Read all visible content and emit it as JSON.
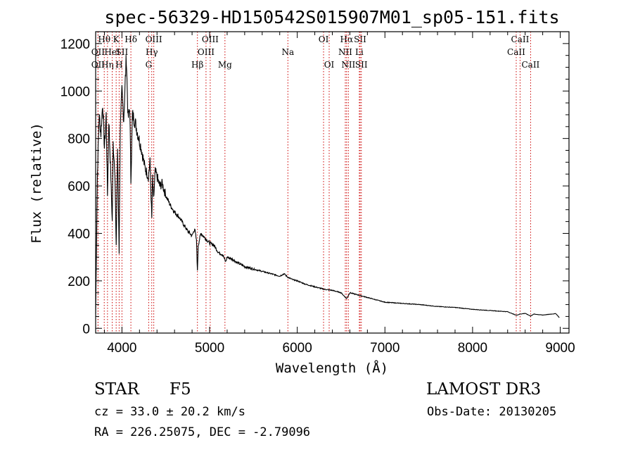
{
  "chart_data": {
    "type": "line",
    "title": "spec-56329-HD150542S015907M01_sp05-151.fits",
    "xlabel": "Wavelength (Å)",
    "ylabel": "Flux (relative)",
    "xlim": [
      3700,
      9100
    ],
    "ylim": [
      -20,
      1250
    ],
    "xticks": [
      4000,
      5000,
      6000,
      7000,
      8000,
      9000
    ],
    "yticks": [
      0,
      200,
      400,
      600,
      800,
      1000,
      1200
    ],
    "grid": false,
    "series": [
      {
        "name": "spectrum",
        "x": [
          3700,
          3720,
          3740,
          3760,
          3780,
          3800,
          3820,
          3835,
          3850,
          3870,
          3889,
          3900,
          3920,
          3934,
          3950,
          3968,
          3980,
          4000,
          4020,
          4050,
          4070,
          4090,
          4102,
          4120,
          4150,
          4180,
          4220,
          4260,
          4300,
          4320,
          4340,
          4350,
          4360,
          4380,
          4400,
          4430,
          4460,
          4500,
          4550,
          4600,
          4650,
          4700,
          4750,
          4800,
          4830,
          4850,
          4861,
          4870,
          4900,
          4950,
          5000,
          5050,
          5100,
          5150,
          5183,
          5200,
          5270,
          5300,
          5400,
          5500,
          5600,
          5700,
          5800,
          5850,
          5893,
          5950,
          6000,
          6100,
          6200,
          6300,
          6400,
          6500,
          6563,
          6600,
          6700,
          6800,
          6900,
          7000,
          7200,
          7400,
          7600,
          7800,
          8000,
          8200,
          8400,
          8498,
          8542,
          8600,
          8662,
          8700,
          8800,
          8950,
          8990
        ],
        "values": [
          60,
          650,
          900,
          820,
          950,
          760,
          900,
          560,
          880,
          680,
          450,
          780,
          660,
          340,
          760,
          320,
          830,
          1000,
          880,
          1150,
          880,
          930,
          620,
          900,
          870,
          820,
          760,
          680,
          640,
          700,
          460,
          640,
          540,
          660,
          640,
          600,
          610,
          560,
          520,
          490,
          470,
          440,
          410,
          390,
          420,
          370,
          240,
          350,
          400,
          380,
          360,
          350,
          320,
          310,
          280,
          300,
          290,
          280,
          260,
          250,
          240,
          230,
          220,
          230,
          215,
          205,
          200,
          185,
          175,
          165,
          160,
          150,
          125,
          150,
          140,
          130,
          120,
          110,
          105,
          100,
          92,
          88,
          80,
          75,
          70,
          55,
          60,
          63,
          52,
          60,
          56,
          62,
          45
        ]
      }
    ],
    "spectral_lines": [
      {
        "label": "Hθ",
        "x": 3798,
        "row": 0
      },
      {
        "label": "OII",
        "x": 3727,
        "row": 1
      },
      {
        "label": "OII",
        "x": 3727,
        "row": 2
      },
      {
        "label": "Hη",
        "x": 3835,
        "row": 2
      },
      {
        "label": "HeI",
        "x": 3889,
        "row": 1
      },
      {
        "label": "K",
        "x": 3934,
        "row": 0
      },
      {
        "label": "SII",
        "x": 4000,
        "row": 1
      },
      {
        "label": "H",
        "x": 3968,
        "row": 2
      },
      {
        "label": "Hδ",
        "x": 4102,
        "row": 0
      },
      {
        "label": "OIII",
        "x": 4363,
        "row": 0
      },
      {
        "label": "Hγ",
        "x": 4340,
        "row": 1
      },
      {
        "label": "G",
        "x": 4305,
        "row": 2
      },
      {
        "label": "OIII",
        "x": 5007,
        "row": 0
      },
      {
        "label": "OIII",
        "x": 4959,
        "row": 1
      },
      {
        "label": "Hβ",
        "x": 4861,
        "row": 2
      },
      {
        "label": "Mg",
        "x": 5175,
        "row": 2
      },
      {
        "label": "Na",
        "x": 5893,
        "row": 1
      },
      {
        "label": "OI",
        "x": 6300,
        "row": 0
      },
      {
        "label": "OI",
        "x": 6364,
        "row": 2
      },
      {
        "label": "Hα",
        "x": 6563,
        "row": 0
      },
      {
        "label": "NII",
        "x": 6548,
        "row": 1
      },
      {
        "label": "NII",
        "x": 6583,
        "row": 2
      },
      {
        "label": "SII",
        "x": 6717,
        "row": 0
      },
      {
        "label": "Li",
        "x": 6708,
        "row": 1
      },
      {
        "label": "SII",
        "x": 6731,
        "row": 2
      },
      {
        "label": "CaII",
        "x": 8542,
        "row": 0
      },
      {
        "label": "CaII",
        "x": 8498,
        "row": 1
      },
      {
        "label": "CaII",
        "x": 8662,
        "row": 2
      }
    ]
  },
  "info": {
    "object_type": "STAR",
    "subclass": "F5",
    "survey": "LAMOST DR3",
    "cz": "cz = 33.0 ± 20.2 km/s",
    "obs_date": "Obs-Date: 20130205",
    "coords": "RA = 226.25075, DEC =  -2.79096"
  },
  "colors": {
    "line": "#000000",
    "marker": "#cc0000",
    "axis": "#000000"
  }
}
